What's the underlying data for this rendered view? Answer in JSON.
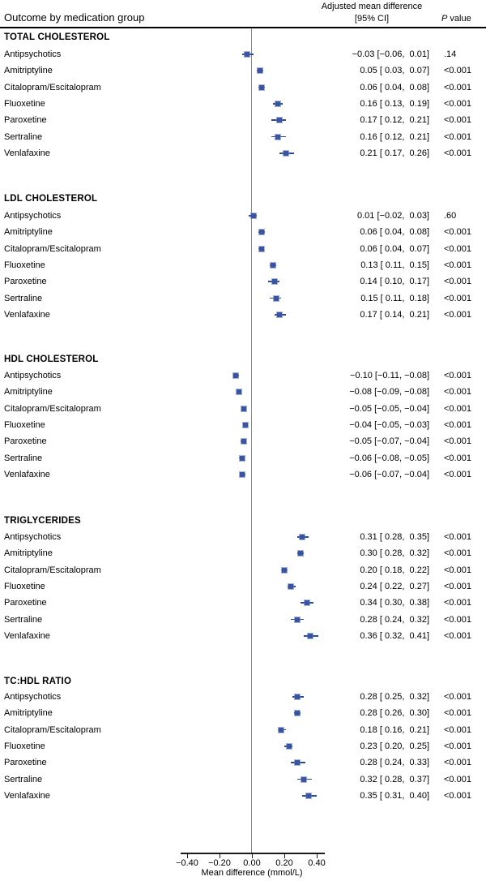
{
  "chart_data": {
    "type": "forest",
    "title": "Outcome by medication group",
    "columns": {
      "effect_line1": "Adjusted mean difference",
      "effect_line2": "[95% CI]",
      "p_italic": "P",
      "p_rest": " value"
    },
    "xlabel": "Mean difference (mmol/L)",
    "xlim": [
      -0.44,
      0.45
    ],
    "reference_line": 0,
    "x_ticks": [
      {
        "v": -0.4,
        "label": "−0.40"
      },
      {
        "v": -0.2,
        "label": "−0.20"
      },
      {
        "v": 0.0,
        "label": "0.00"
      },
      {
        "v": 0.2,
        "label": "0.20"
      },
      {
        "v": 0.4,
        "label": "0.40"
      }
    ],
    "colors": {
      "marker": "#3a53a3",
      "ci": "#2c4a97",
      "refline": "#8a8a8a",
      "axis": "#1a1a1a"
    },
    "sections": [
      {
        "heading": "TOTAL CHOLESTEROL",
        "rows": [
          {
            "label": "Antipsychotics",
            "est": -0.03,
            "lo": -0.06,
            "hi": 0.01,
            "text": "−0.03 [−0.06,  0.01]",
            "p": ".14"
          },
          {
            "label": "Amitriptyline",
            "est": 0.05,
            "lo": 0.03,
            "hi": 0.07,
            "text": "0.05 [ 0.03,  0.07]",
            "p": "<0.001"
          },
          {
            "label": "Citalopram/Escitalopram",
            "est": 0.06,
            "lo": 0.04,
            "hi": 0.08,
            "text": "0.06 [ 0.04,  0.08]",
            "p": "<0.001"
          },
          {
            "label": "Fluoxetine",
            "est": 0.16,
            "lo": 0.13,
            "hi": 0.19,
            "text": "0.16 [ 0.13,  0.19]",
            "p": "<0.001"
          },
          {
            "label": "Paroxetine",
            "est": 0.17,
            "lo": 0.12,
            "hi": 0.21,
            "text": "0.17 [ 0.12,  0.21]",
            "p": "<0.001"
          },
          {
            "label": "Sertraline",
            "est": 0.16,
            "lo": 0.12,
            "hi": 0.21,
            "text": "0.16 [ 0.12,  0.21]",
            "p": "<0.001"
          },
          {
            "label": "Venlafaxine",
            "est": 0.21,
            "lo": 0.17,
            "hi": 0.26,
            "text": "0.21 [ 0.17,  0.26]",
            "p": "<0.001"
          }
        ]
      },
      {
        "heading": "LDL CHOLESTEROL",
        "rows": [
          {
            "label": "Antipsychotics",
            "est": 0.01,
            "lo": -0.02,
            "hi": 0.03,
            "text": "0.01 [−0.02,  0.03]",
            "p": ".60"
          },
          {
            "label": "Amitriptyline",
            "est": 0.06,
            "lo": 0.04,
            "hi": 0.08,
            "text": "0.06 [ 0.04,  0.08]",
            "p": "<0.001"
          },
          {
            "label": "Citalopram/Escitalopram",
            "est": 0.06,
            "lo": 0.04,
            "hi": 0.07,
            "text": "0.06 [ 0.04,  0.07]",
            "p": "<0.001"
          },
          {
            "label": "Fluoxetine",
            "est": 0.13,
            "lo": 0.11,
            "hi": 0.15,
            "text": "0.13 [ 0.11,  0.15]",
            "p": "<0.001"
          },
          {
            "label": "Paroxetine",
            "est": 0.14,
            "lo": 0.1,
            "hi": 0.17,
            "text": "0.14 [ 0.10,  0.17]",
            "p": "<0.001"
          },
          {
            "label": "Sertraline",
            "est": 0.15,
            "lo": 0.11,
            "hi": 0.18,
            "text": "0.15 [ 0.11,  0.18]",
            "p": "<0.001"
          },
          {
            "label": "Venlafaxine",
            "est": 0.17,
            "lo": 0.14,
            "hi": 0.21,
            "text": "0.17 [ 0.14,  0.21]",
            "p": "<0.001"
          }
        ]
      },
      {
        "heading": "HDL CHOLESTEROL",
        "rows": [
          {
            "label": "Antipsychotics",
            "est": -0.1,
            "lo": -0.11,
            "hi": -0.08,
            "text": "−0.10 [−0.11, −0.08]",
            "p": "<0.001"
          },
          {
            "label": "Amitriptyline",
            "est": -0.08,
            "lo": -0.09,
            "hi": -0.08,
            "text": "−0.08 [−0.09, −0.08]",
            "p": "<0.001"
          },
          {
            "label": "Citalopram/Escitalopram",
            "est": -0.05,
            "lo": -0.05,
            "hi": -0.04,
            "text": "−0.05 [−0.05, −0.04]",
            "p": "<0.001"
          },
          {
            "label": "Fluoxetine",
            "est": -0.04,
            "lo": -0.05,
            "hi": -0.03,
            "text": "−0.04 [−0.05, −0.03]",
            "p": "<0.001"
          },
          {
            "label": "Paroxetine",
            "est": -0.05,
            "lo": -0.07,
            "hi": -0.04,
            "text": "−0.05 [−0.07, −0.04]",
            "p": "<0.001"
          },
          {
            "label": "Sertraline",
            "est": -0.06,
            "lo": -0.08,
            "hi": -0.05,
            "text": "−0.06 [−0.08, −0.05]",
            "p": "<0.001"
          },
          {
            "label": "Venlafaxine",
            "est": -0.06,
            "lo": -0.07,
            "hi": -0.04,
            "text": "−0.06 [−0.07, −0.04]",
            "p": "<0.001"
          }
        ]
      },
      {
        "heading": "TRIGLYCERIDES",
        "rows": [
          {
            "label": "Antipsychotics",
            "est": 0.31,
            "lo": 0.28,
            "hi": 0.35,
            "text": "0.31 [ 0.28,  0.35]",
            "p": "<0.001"
          },
          {
            "label": "Amitriptyline",
            "est": 0.3,
            "lo": 0.28,
            "hi": 0.32,
            "text": "0.30 [ 0.28,  0.32]",
            "p": "<0.001"
          },
          {
            "label": "Citalopram/Escitalopram",
            "est": 0.2,
            "lo": 0.18,
            "hi": 0.22,
            "text": "0.20 [ 0.18,  0.22]",
            "p": "<0.001"
          },
          {
            "label": "Fluoxetine",
            "est": 0.24,
            "lo": 0.22,
            "hi": 0.27,
            "text": "0.24 [ 0.22,  0.27]",
            "p": "<0.001"
          },
          {
            "label": "Paroxetine",
            "est": 0.34,
            "lo": 0.3,
            "hi": 0.38,
            "text": "0.34 [ 0.30,  0.38]",
            "p": "<0.001"
          },
          {
            "label": "Sertraline",
            "est": 0.28,
            "lo": 0.24,
            "hi": 0.32,
            "text": "0.28 [ 0.24,  0.32]",
            "p": "<0.001"
          },
          {
            "label": "Venlafaxine",
            "est": 0.36,
            "lo": 0.32,
            "hi": 0.41,
            "text": "0.36 [ 0.32,  0.41]",
            "p": "<0.001"
          }
        ]
      },
      {
        "heading": "TC:HDL RATIO",
        "rows": [
          {
            "label": "Antipsychotics",
            "est": 0.28,
            "lo": 0.25,
            "hi": 0.32,
            "text": "0.28 [ 0.25,  0.32]",
            "p": "<0.001"
          },
          {
            "label": "Amitriptyline",
            "est": 0.28,
            "lo": 0.26,
            "hi": 0.3,
            "text": "0.28 [ 0.26,  0.30]",
            "p": "<0.001"
          },
          {
            "label": "Citalopram/Escitalopram",
            "est": 0.18,
            "lo": 0.16,
            "hi": 0.21,
            "text": "0.18 [ 0.16,  0.21]",
            "p": "<0.001"
          },
          {
            "label": "Fluoxetine",
            "est": 0.23,
            "lo": 0.2,
            "hi": 0.25,
            "text": "0.23 [ 0.20,  0.25]",
            "p": "<0.001"
          },
          {
            "label": "Paroxetine",
            "est": 0.28,
            "lo": 0.24,
            "hi": 0.33,
            "text": "0.28 [ 0.24,  0.33]",
            "p": "<0.001"
          },
          {
            "label": "Sertraline",
            "est": 0.32,
            "lo": 0.28,
            "hi": 0.37,
            "text": "0.32 [ 0.28,  0.37]",
            "p": "<0.001"
          },
          {
            "label": "Venlafaxine",
            "est": 0.35,
            "lo": 0.31,
            "hi": 0.4,
            "text": "0.35 [ 0.31,  0.40]",
            "p": "<0.001"
          }
        ]
      }
    ]
  }
}
